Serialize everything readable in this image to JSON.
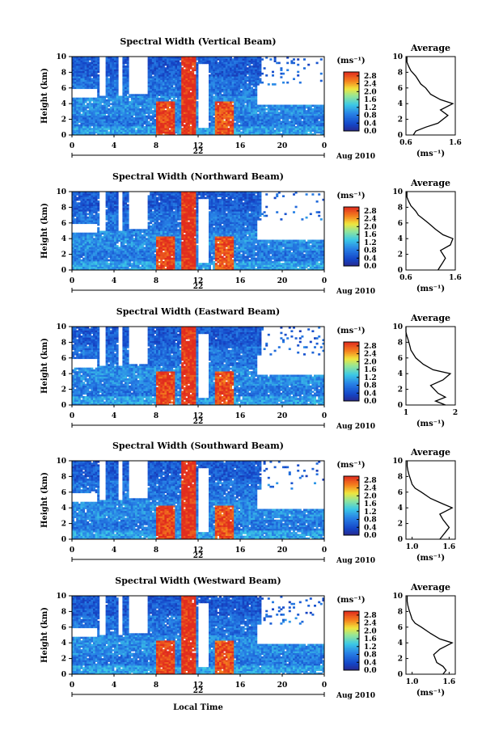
{
  "figure": {
    "x_title": "Local Time"
  },
  "chart_data": [
    {
      "type": "heatmap",
      "title": "Spectral Width (Vertical Beam)",
      "ylabel": "Height (km)",
      "xlim": [
        0,
        24
      ],
      "ylim": [
        0,
        10
      ],
      "xticks": [
        "0",
        "4",
        "8",
        "12",
        "16",
        "20",
        "0"
      ],
      "yticks": [
        "0",
        "2",
        "4",
        "6",
        "8",
        "10"
      ],
      "date_label": "22",
      "month_label": "Aug 2010",
      "colorbar": {
        "unit": "(ms⁻¹)",
        "ticks": [
          "0.0",
          "0.4",
          "0.8",
          "1.2",
          "1.6",
          "2.0",
          "2.4",
          "2.8"
        ],
        "range": [
          0,
          3.0
        ]
      }
    },
    {
      "type": "line",
      "title": "Average",
      "ylim": [
        0,
        10
      ],
      "xlim": [
        0.6,
        1.6
      ],
      "xticks": [
        "0.6",
        "1.6"
      ],
      "yticks": [
        "0",
        "2",
        "4",
        "6",
        "8",
        "10"
      ],
      "xlabel": "(ms⁻¹)",
      "x": [
        0.75,
        0.8,
        1.0,
        1.25,
        1.45,
        1.3,
        1.55,
        1.3,
        1.1,
        1.0,
        0.9,
        0.85,
        0.8,
        0.7,
        0.65,
        0.62,
        0.62
      ],
      "y": [
        0,
        0.5,
        1,
        1.5,
        2.5,
        3.2,
        4.0,
        4.5,
        5.2,
        6.0,
        6.5,
        7.0,
        7.5,
        8.2,
        8.8,
        9.3,
        10
      ]
    },
    {
      "type": "heatmap",
      "title": "Spectral Width (Northward Beam)",
      "ylabel": "Height (km)",
      "xlim": [
        0,
        24
      ],
      "ylim": [
        0,
        10
      ],
      "xticks": [
        "0",
        "4",
        "8",
        "12",
        "16",
        "20",
        "0"
      ],
      "yticks": [
        "0",
        "2",
        "4",
        "6",
        "8",
        "10"
      ],
      "date_label": "22",
      "month_label": "Aug 2010",
      "colorbar": {
        "unit": "(ms⁻¹)",
        "ticks": [
          "0.0",
          "0.4",
          "0.8",
          "1.2",
          "1.6",
          "2.0",
          "2.4",
          "2.8"
        ],
        "range": [
          0,
          3.0
        ]
      }
    },
    {
      "type": "line",
      "title": "Average",
      "ylim": [
        0,
        10
      ],
      "xlim": [
        0.6,
        1.6
      ],
      "xticks": [
        "0.6",
        "1.6"
      ],
      "yticks": [
        "0",
        "2",
        "4",
        "6",
        "8",
        "10"
      ],
      "xlabel": "(ms⁻¹)",
      "x": [
        1.25,
        1.3,
        1.35,
        1.4,
        1.3,
        1.5,
        1.55,
        1.35,
        1.2,
        1.05,
        0.95,
        0.85,
        0.8,
        0.7,
        0.65,
        0.62,
        0.62
      ],
      "y": [
        0,
        0.5,
        1,
        1.5,
        2.5,
        3.2,
        4.0,
        4.5,
        5.2,
        6.0,
        6.5,
        7.0,
        7.5,
        8.2,
        8.8,
        9.3,
        10
      ]
    },
    {
      "type": "heatmap",
      "title": "Spectral Width (Eastward Beam)",
      "ylabel": "Height (km)",
      "xlim": [
        0,
        24
      ],
      "ylim": [
        0,
        10
      ],
      "xticks": [
        "0",
        "4",
        "8",
        "12",
        "16",
        "20",
        "0"
      ],
      "yticks": [
        "0",
        "2",
        "4",
        "6",
        "8",
        "10"
      ],
      "date_label": "22",
      "month_label": "Aug 2010",
      "colorbar": {
        "unit": "(ms⁻¹)",
        "ticks": [
          "0.0",
          "0.4",
          "0.8",
          "1.2",
          "1.6",
          "2.0",
          "2.4",
          "2.8"
        ],
        "range": [
          0,
          3.0
        ]
      }
    },
    {
      "type": "line",
      "title": "Average",
      "ylim": [
        0,
        10
      ],
      "xlim": [
        1,
        2
      ],
      "xticks": [
        "1",
        "2"
      ],
      "yticks": [
        "0",
        "2",
        "4",
        "6",
        "8",
        "10"
      ],
      "xlabel": "(ms⁻¹)",
      "x": [
        1.8,
        1.6,
        1.8,
        1.65,
        1.5,
        1.75,
        1.9,
        1.55,
        1.35,
        1.2,
        1.15,
        1.1,
        1.08,
        1.05,
        1.02,
        1.0,
        1.0
      ],
      "y": [
        0,
        0.5,
        1,
        1.5,
        2.5,
        3.2,
        4.0,
        4.5,
        5.2,
        6.0,
        6.5,
        7.0,
        7.5,
        8.2,
        8.8,
        9.3,
        10
      ]
    },
    {
      "type": "heatmap",
      "title": "Spectral Width (Southward Beam)",
      "ylabel": "Height (km)",
      "xlim": [
        0,
        24
      ],
      "ylim": [
        0,
        10
      ],
      "xticks": [
        "0",
        "4",
        "8",
        "12",
        "16",
        "20",
        "0"
      ],
      "yticks": [
        "0",
        "2",
        "4",
        "6",
        "8",
        "10"
      ],
      "date_label": "22",
      "month_label": "Aug 2010",
      "colorbar": {
        "unit": "(ms⁻¹)",
        "ticks": [
          "0.0",
          "0.4",
          "0.8",
          "1.2",
          "1.6",
          "2.0",
          "2.4",
          "2.8"
        ],
        "range": [
          0,
          3.0
        ]
      }
    },
    {
      "type": "line",
      "title": "Average",
      "ylim": [
        0,
        10
      ],
      "xlim": [
        0.9,
        1.7
      ],
      "xticks": [
        "1.0",
        "1.6"
      ],
      "yticks": [
        "0",
        "2",
        "4",
        "6",
        "8",
        "10"
      ],
      "xlabel": "(ms⁻¹)",
      "x": [
        1.45,
        1.5,
        1.55,
        1.6,
        1.5,
        1.45,
        1.65,
        1.5,
        1.3,
        1.15,
        1.05,
        1.0,
        0.98,
        0.95,
        0.93,
        0.92,
        0.92
      ],
      "y": [
        0,
        0.5,
        1,
        1.5,
        2.5,
        3.2,
        4.0,
        4.5,
        5.2,
        6.0,
        6.5,
        7.0,
        7.5,
        8.2,
        8.8,
        9.3,
        10
      ]
    },
    {
      "type": "heatmap",
      "title": "Spectral Width (Westward Beam)",
      "ylabel": "Height (km)",
      "xlim": [
        0,
        24
      ],
      "ylim": [
        0,
        10
      ],
      "xticks": [
        "0",
        "4",
        "8",
        "12",
        "16",
        "20",
        "0"
      ],
      "yticks": [
        "0",
        "2",
        "4",
        "6",
        "8",
        "10"
      ],
      "date_label": "22",
      "month_label": "Aug 2010",
      "colorbar": {
        "unit": "(ms⁻¹)",
        "ticks": [
          "0.0",
          "0.4",
          "0.8",
          "1.2",
          "1.6",
          "2.0",
          "2.4",
          "2.8"
        ],
        "range": [
          0,
          3.0
        ]
      }
    },
    {
      "type": "line",
      "title": "Average",
      "ylim": [
        0,
        10
      ],
      "xlim": [
        0.9,
        1.7
      ],
      "xticks": [
        "1.0",
        "1.6"
      ],
      "yticks": [
        "0",
        "2",
        "4",
        "6",
        "8",
        "10"
      ],
      "xlabel": "(ms⁻¹)",
      "x": [
        1.5,
        1.55,
        1.5,
        1.4,
        1.35,
        1.45,
        1.65,
        1.45,
        1.3,
        1.15,
        1.05,
        1.0,
        0.98,
        0.95,
        0.93,
        0.92,
        0.92
      ],
      "y": [
        0,
        0.5,
        1,
        1.5,
        2.5,
        3.2,
        4.0,
        4.5,
        5.2,
        6.0,
        6.5,
        7.0,
        7.5,
        8.2,
        8.8,
        9.3,
        10
      ]
    }
  ]
}
